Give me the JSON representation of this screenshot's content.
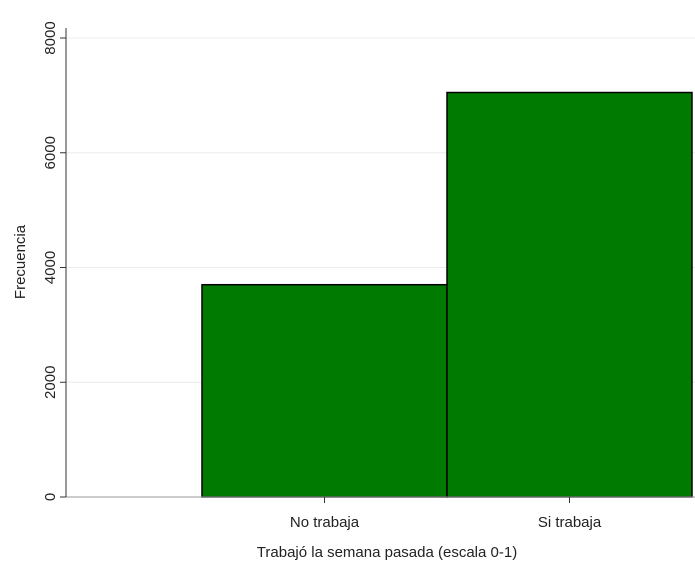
{
  "chart_data": {
    "type": "bar",
    "title": "",
    "xlabel": "Trabajó la semana pasada (escala 0-1)",
    "ylabel": "Frecuencia",
    "ylim": [
      0,
      8000
    ],
    "yticks": [
      0,
      2000,
      4000,
      6000,
      8000
    ],
    "categories": [
      "No trabaja",
      "Si trabaja"
    ],
    "values": [
      3700,
      7050
    ],
    "bar_color": "#007a00",
    "bar_outline": "#000000",
    "grid": true,
    "grid_color": "#ececec",
    "legend": "none"
  }
}
